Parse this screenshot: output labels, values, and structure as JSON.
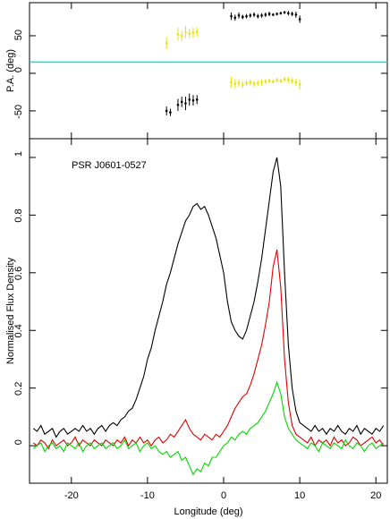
{
  "chart_data": [
    {
      "type": "errorbar",
      "ylabel": "P.A. (deg)",
      "xlim": [
        -25.5,
        21.5
      ],
      "xticks": [
        -20,
        -10,
        0,
        10,
        20
      ],
      "ylim": [
        -87,
        94
      ],
      "yticks": [
        -50,
        0,
        50
      ],
      "reference_line": {
        "value": 15,
        "color": "#00e5e5"
      },
      "series": [
        {
          "color": "#000000",
          "x": [
            -7.5,
            -7,
            -6,
            -5.5,
            -5,
            -4.5,
            -4,
            -3.5
          ],
          "values": [
            -50,
            -52,
            -42,
            -38,
            -40,
            -35,
            -36,
            -35
          ],
          "errors": [
            6,
            5,
            8,
            7,
            9,
            8,
            7,
            6
          ]
        },
        {
          "color": "#e5e500",
          "x": [
            -7.5,
            -6,
            -5.5,
            -5,
            -4.5,
            -4,
            -3.5
          ],
          "values": [
            40,
            52,
            50,
            55,
            53,
            54,
            55
          ],
          "errors": [
            8,
            9,
            7,
            8,
            6,
            7,
            6
          ]
        },
        {
          "color": "#000000",
          "x": [
            1,
            1.5,
            2,
            2.5,
            3,
            3.5,
            4,
            4.5,
            5,
            5.5,
            6,
            6.5,
            7,
            7.5,
            8,
            8.5,
            9,
            9.5,
            10
          ],
          "values": [
            76,
            74,
            77,
            75,
            76,
            77,
            78,
            76,
            77,
            78,
            79,
            78,
            79,
            80,
            81,
            80,
            79,
            78,
            72
          ],
          "errors": [
            5,
            4,
            4,
            3,
            3,
            3,
            3,
            3,
            3,
            3,
            3,
            2,
            2,
            2,
            2,
            3,
            3,
            4,
            5
          ]
        },
        {
          "color": "#e5e500",
          "x": [
            1,
            1.5,
            2,
            2.5,
            3,
            3.5,
            4,
            4.5,
            5,
            5.5,
            6,
            6.5,
            7,
            7.5,
            8,
            8.5,
            9,
            9.5,
            10
          ],
          "values": [
            -12,
            -14,
            -13,
            -15,
            -13,
            -12,
            -14,
            -13,
            -12,
            -11,
            -10,
            -11,
            -9,
            -10,
            -8,
            -9,
            -10,
            -12,
            -15
          ],
          "errors": [
            7,
            6,
            5,
            5,
            4,
            4,
            4,
            4,
            4,
            3,
            3,
            3,
            3,
            3,
            3,
            4,
            4,
            5,
            7
          ]
        }
      ]
    },
    {
      "type": "line",
      "xlabel": "Longitude (deg)",
      "ylabel": "Normalised Flux Density",
      "annotation": "PSR J0601-0527",
      "xlim": [
        -25.5,
        21.5
      ],
      "xticks": [
        -20,
        -10,
        0,
        10,
        20
      ],
      "ylim": [
        -0.13,
        1.065
      ],
      "yticks": [
        0,
        0.2,
        0.4,
        0.6,
        0.8,
        1
      ],
      "x": [
        -25,
        -24.5,
        -24,
        -23.5,
        -23,
        -22.5,
        -22,
        -21.5,
        -21,
        -20.5,
        -20,
        -19.5,
        -19,
        -18.5,
        -18,
        -17.5,
        -17,
        -16.5,
        -16,
        -15.5,
        -15,
        -14.5,
        -14,
        -13.5,
        -13,
        -12.5,
        -12,
        -11.5,
        -11,
        -10.5,
        -10,
        -9.5,
        -9,
        -8.5,
        -8,
        -7.5,
        -7,
        -6.5,
        -6,
        -5.5,
        -5,
        -4.5,
        -4,
        -3.5,
        -3,
        -2.5,
        -2,
        -1.5,
        -1,
        -0.5,
        0,
        0.5,
        1,
        1.5,
        2,
        2.5,
        3,
        3.5,
        4,
        4.5,
        5,
        5.5,
        6,
        6.5,
        7,
        7.5,
        8,
        8.5,
        9,
        9.5,
        10,
        10.5,
        11,
        11.5,
        12,
        12.5,
        13,
        13.5,
        14,
        14.5,
        15,
        15.5,
        16,
        16.5,
        17,
        17.5,
        18,
        18.5,
        19,
        19.5,
        20,
        20.5,
        21
      ],
      "series": [
        {
          "color": "#000000",
          "values": [
            0.06,
            0.05,
            0.07,
            0.04,
            0.05,
            0.06,
            0.03,
            0.05,
            0.06,
            0.04,
            0.05,
            0.06,
            0.05,
            0.07,
            0.05,
            0.06,
            0.04,
            0.06,
            0.07,
            0.05,
            0.07,
            0.08,
            0.07,
            0.09,
            0.1,
            0.12,
            0.13,
            0.16,
            0.2,
            0.24,
            0.3,
            0.34,
            0.4,
            0.45,
            0.5,
            0.56,
            0.6,
            0.65,
            0.7,
            0.74,
            0.78,
            0.8,
            0.83,
            0.84,
            0.82,
            0.83,
            0.8,
            0.76,
            0.72,
            0.66,
            0.6,
            0.5,
            0.43,
            0.4,
            0.38,
            0.37,
            0.4,
            0.45,
            0.5,
            0.57,
            0.65,
            0.75,
            0.85,
            0.95,
            1.0,
            0.9,
            0.6,
            0.35,
            0.2,
            0.12,
            0.08,
            0.07,
            0.06,
            0.05,
            0.07,
            0.05,
            0.06,
            0.04,
            0.06,
            0.05,
            0.07,
            0.05,
            0.04,
            0.06,
            0.05,
            0.07,
            0.04,
            0.06,
            0.05,
            0.04,
            0.06,
            0.05,
            0.07
          ]
        },
        {
          "color": "#e00000",
          "values": [
            0.01,
            0.0,
            0.02,
            0.01,
            -0.01,
            0.02,
            0.0,
            0.01,
            0.02,
            0.0,
            0.01,
            0.03,
            0.0,
            0.02,
            0.01,
            0.0,
            0.02,
            0.01,
            0.0,
            0.02,
            0.01,
            0.0,
            0.02,
            0.01,
            0.03,
            0.0,
            0.02,
            0.01,
            0.03,
            0.01,
            0.02,
            0.0,
            0.02,
            0.03,
            0.01,
            0.02,
            0.04,
            0.03,
            0.05,
            0.07,
            0.09,
            0.06,
            0.04,
            0.03,
            0.02,
            0.04,
            0.03,
            0.02,
            0.04,
            0.03,
            0.05,
            0.07,
            0.1,
            0.13,
            0.15,
            0.17,
            0.18,
            0.21,
            0.25,
            0.3,
            0.35,
            0.42,
            0.5,
            0.62,
            0.68,
            0.55,
            0.3,
            0.15,
            0.07,
            0.04,
            0.03,
            0.02,
            0.01,
            0.03,
            0.0,
            0.02,
            0.01,
            0.02,
            0.0,
            0.03,
            0.01,
            0.02,
            0.0,
            0.01,
            0.03,
            0.02,
            0.0,
            0.01,
            0.02,
            0.03,
            0.01,
            0.02,
            0.0
          ]
        },
        {
          "color": "#00d800",
          "values": [
            -0.01,
            0.0,
            0.01,
            -0.02,
            0.0,
            0.01,
            -0.01,
            0.0,
            -0.02,
            0.01,
            0.0,
            -0.01,
            0.01,
            -0.02,
            0.0,
            0.01,
            -0.01,
            0.0,
            0.01,
            -0.01,
            0.0,
            0.01,
            -0.01,
            0.0,
            0.02,
            -0.01,
            0.0,
            0.01,
            -0.02,
            0.0,
            0.01,
            -0.01,
            0.0,
            -0.02,
            -0.03,
            -0.02,
            -0.04,
            -0.03,
            -0.02,
            -0.05,
            -0.04,
            -0.07,
            -0.1,
            -0.08,
            -0.09,
            -0.06,
            -0.07,
            -0.04,
            -0.04,
            -0.02,
            0.0,
            0.01,
            0.03,
            0.02,
            0.04,
            0.05,
            0.04,
            0.06,
            0.07,
            0.08,
            0.1,
            0.12,
            0.15,
            0.18,
            0.22,
            0.18,
            0.1,
            0.06,
            0.04,
            0.02,
            0.01,
            0.0,
            -0.01,
            0.01,
            0.0,
            -0.02,
            0.01,
            0.0,
            -0.01,
            0.01,
            0.0,
            -0.01,
            0.02,
            0.0,
            -0.01,
            0.01,
            0.0,
            -0.02,
            0.0,
            0.01,
            -0.01,
            0.0,
            0.01
          ]
        }
      ]
    }
  ]
}
